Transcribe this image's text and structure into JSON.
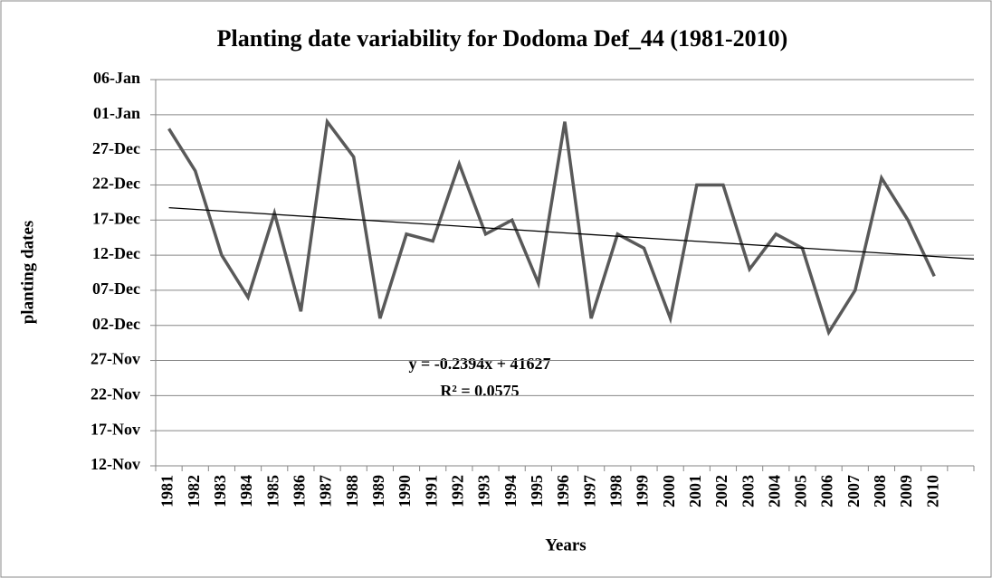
{
  "chart_data": {
    "type": "line",
    "title": "Planting date variability for Dodoma Def_44 (1981-2010)",
    "x_label": "Years",
    "y_label": "planting dates",
    "categories": [
      "1981",
      "1982",
      "1983",
      "1984",
      "1985",
      "1986",
      "1987",
      "1988",
      "1989",
      "1990",
      "1991",
      "1992",
      "1993",
      "1994",
      "1995",
      "1996",
      "1997",
      "1998",
      "1999",
      "2000",
      "2001",
      "2002",
      "2003",
      "2004",
      "2005",
      "2006",
      "2007",
      "2008",
      "2009",
      "2010",
      null
    ],
    "values": [
      41638,
      41632,
      41620,
      41614,
      41626,
      41612,
      41639,
      41634,
      41611,
      41623,
      41622,
      41633,
      41623,
      41625,
      41616,
      41639,
      41611,
      41623,
      41621,
      41611,
      41630,
      41630,
      41618,
      41623,
      41621,
      41609,
      41615,
      41631,
      41625,
      41617,
      null
    ],
    "color": "#595959",
    "ylim": [
      41590,
      41645
    ],
    "yticks": [
      {
        "value": 41590,
        "label": "12-Nov"
      },
      {
        "value": 41595,
        "label": "17-Nov"
      },
      {
        "value": 41600,
        "label": "22-Nov"
      },
      {
        "value": 41605,
        "label": "27-Nov"
      },
      {
        "value": 41610,
        "label": "02-Dec"
      },
      {
        "value": 41615,
        "label": "07-Dec"
      },
      {
        "value": 41620,
        "label": "12-Dec"
      },
      {
        "value": 41625,
        "label": "17-Dec"
      },
      {
        "value": 41630,
        "label": "22-Dec"
      },
      {
        "value": 41635,
        "label": "27-Dec"
      },
      {
        "value": 41640,
        "label": "01-Jan"
      },
      {
        "value": 41645,
        "label": "06-Jan"
      }
    ],
    "grid": true,
    "trendline": {
      "equation": "y = -0.2394x + 41627",
      "r_squared": "R² = 0.0575",
      "slope": -0.2394,
      "intercept": 41627,
      "color": "#000000"
    }
  }
}
